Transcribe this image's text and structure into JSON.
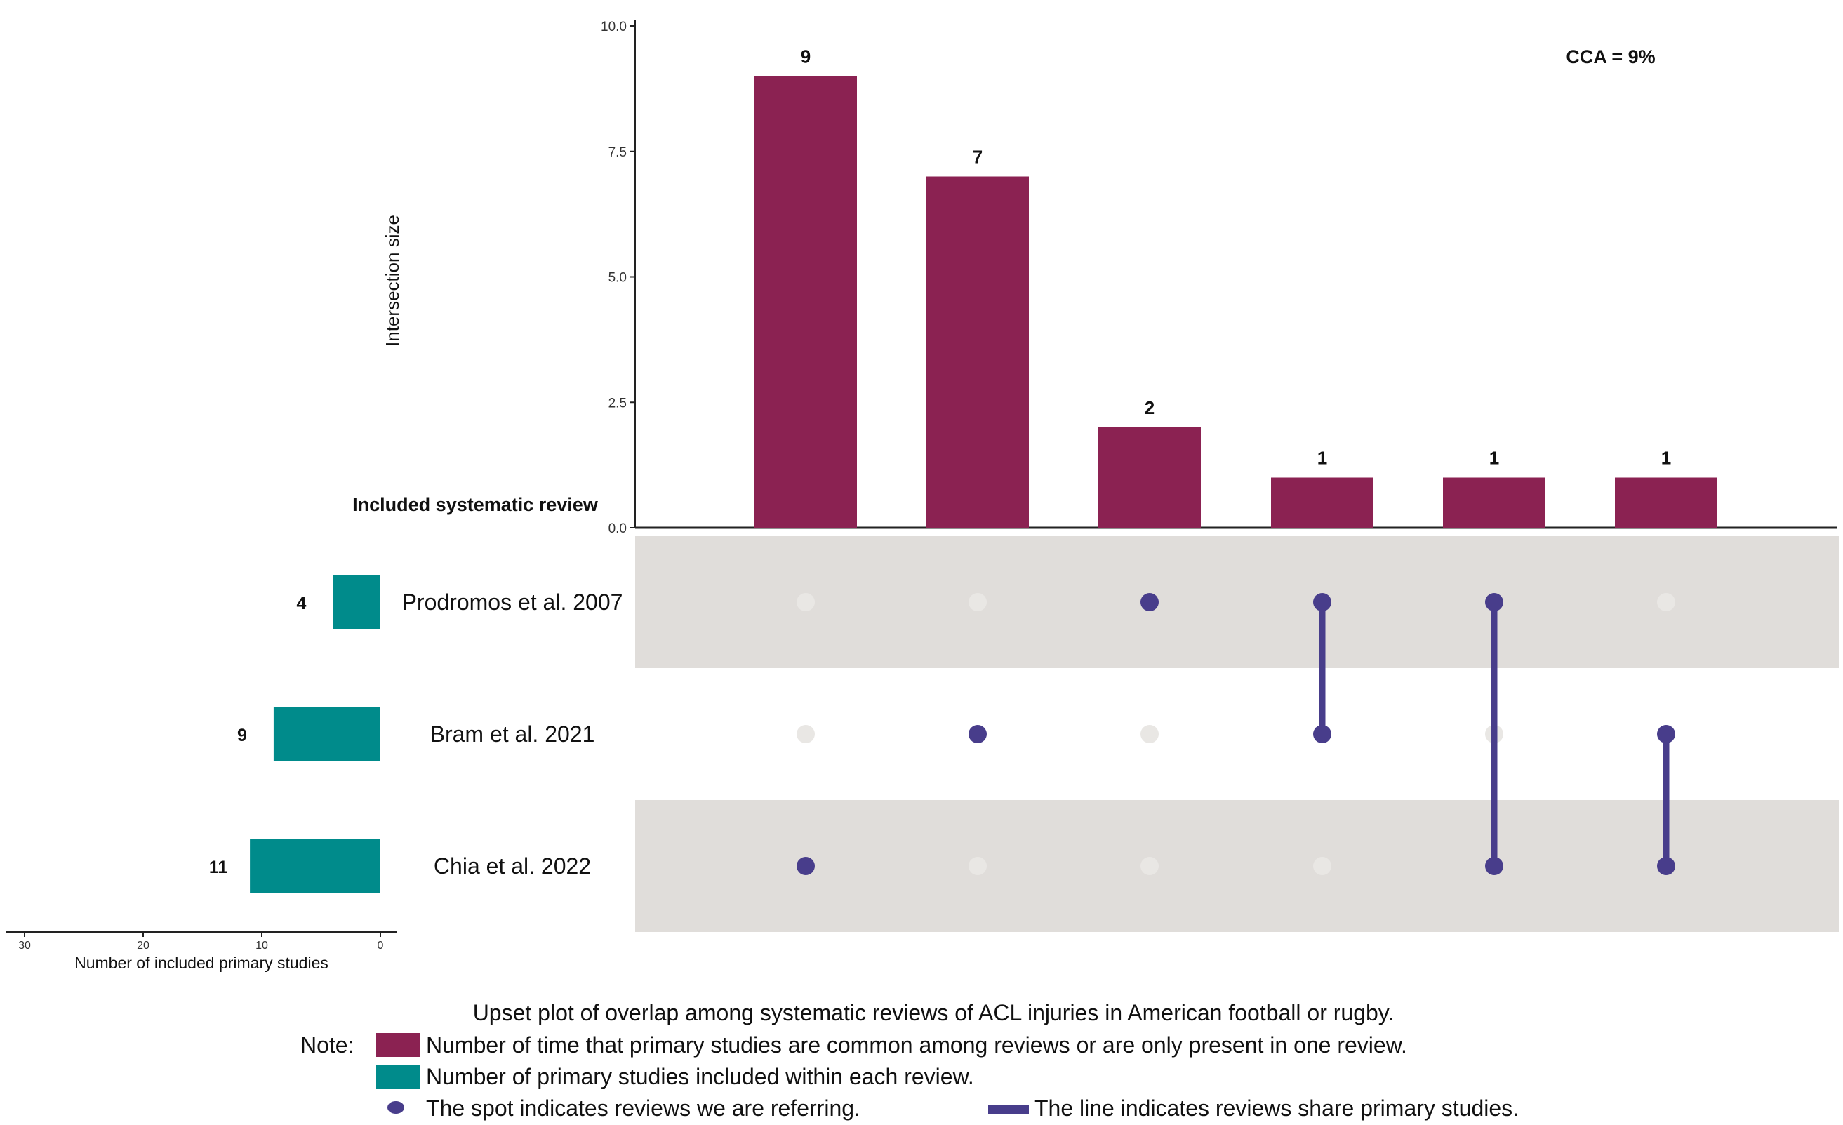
{
  "chart_data": {
    "type": "upset",
    "cca_label": "CCA = 9%",
    "y_axis_label": "Intersection size",
    "y_ticks": [
      "10.0",
      "7.5",
      "5.0",
      "2.5",
      "0.0"
    ],
    "y_tick_values": [
      10,
      7.5,
      5,
      2.5,
      0
    ],
    "ylim": [
      0,
      10
    ],
    "intersection_values": [
      9,
      7,
      2,
      1,
      1,
      1
    ],
    "intersection_labels": [
      "9",
      "7",
      "2",
      "1",
      "1",
      "1"
    ],
    "sets_title": "Included systematic review",
    "sets": [
      {
        "name": "Prodromos et al. 2007",
        "size": 4,
        "size_label": "4"
      },
      {
        "name": "Bram et al. 2021",
        "size": 9,
        "size_label": "9"
      },
      {
        "name": "Chia et al. 2022",
        "size": 11,
        "size_label": "11"
      }
    ],
    "membership": [
      [
        2
      ],
      [
        1
      ],
      [
        0
      ],
      [
        0,
        1
      ],
      [
        0,
        2
      ],
      [
        1,
        2
      ]
    ],
    "set_size_axis_label": "Number of included primary studies",
    "set_size_ticks": [
      "30",
      "20",
      "10",
      "0"
    ],
    "set_size_tick_values": [
      30,
      20,
      10,
      0
    ],
    "set_size_max": 30
  },
  "caption": "Upset plot of overlap among systematic reviews of ACL injuries in American football or rugby.",
  "legend": {
    "note_label": "Note:",
    "bar_text": "Number of time that primary studies are common among reviews or are only present in one review.",
    "set_text": "Number of primary studies included within each review.",
    "dot_text": "The spot indicates reviews we are referring.",
    "line_text": "The line indicates reviews share primary studies."
  },
  "colors": {
    "intersection_bar": "#8B2252",
    "set_bar": "#008B8B",
    "dot_active": "#483D8B",
    "dot_inactive": "#E9E7E4",
    "band": "#E0DDDA",
    "axis": "#222222"
  }
}
